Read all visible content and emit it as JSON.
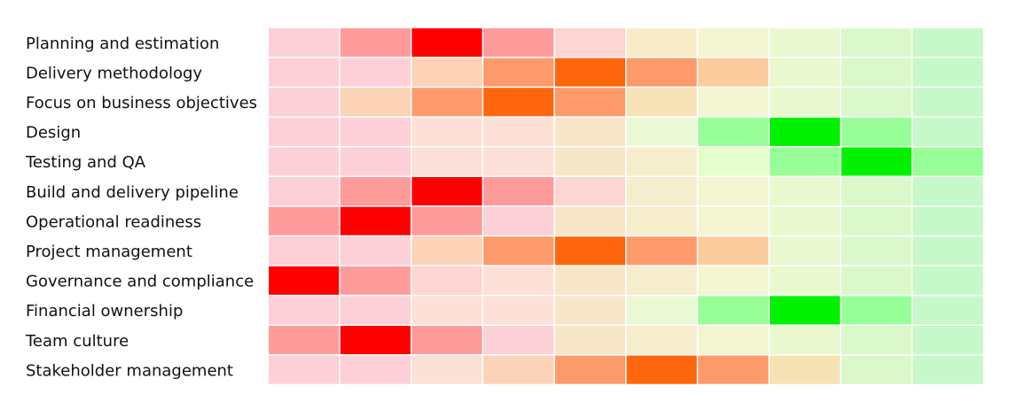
{
  "chart_data": {
    "type": "heatmap",
    "title": "",
    "xlabel": "",
    "ylabel": "",
    "rows": [
      "Planning and estimation",
      "Delivery methodology",
      "Focus  on business objectives",
      "Design",
      "Testing and QA",
      "Build  and delivery pipeline",
      "Operational readiness",
      "Project management",
      "Governance and compliance",
      "Financial ownership",
      "Team culture",
      "Stakeholder management"
    ],
    "columns": 10,
    "cell_colors": [
      [
        "#fdd0d8",
        "#fe9b9b",
        "#ff0000",
        "#fe9b9b",
        "#fdd5d2",
        "#f8ecc8",
        "#f4f5d2",
        "#eaf8d0",
        "#dbf8cb",
        "#c6f8c9"
      ],
      [
        "#fdd0d8",
        "#fdd0d8",
        "#fcd3b7",
        "#fd9a6c",
        "#fd660c",
        "#fd9a6c",
        "#fbcc9e",
        "#eaf8d0",
        "#dbf8cb",
        "#c6f8c9"
      ],
      [
        "#fdd0d8",
        "#fcd3b7",
        "#fd9a6c",
        "#fd660c",
        "#fd9a6c",
        "#f8e3b9",
        "#f4f5d2",
        "#eaf8d0",
        "#dbf8cb",
        "#c6f8c9"
      ],
      [
        "#fdd0d8",
        "#fdd0d8",
        "#fde0d7",
        "#fde0d7",
        "#f8e6c8",
        "#ebf8d6",
        "#98fe98",
        "#00f200",
        "#98fe98",
        "#c6f8c9"
      ],
      [
        "#fdd0d8",
        "#fdd0d8",
        "#fde0d7",
        "#fde0d7",
        "#f8e6c8",
        "#f6edcd",
        "#e4fecc",
        "#98fe98",
        "#00f200",
        "#98fe98"
      ],
      [
        "#fdd0d8",
        "#fe9b9b",
        "#ff0000",
        "#fe9b9b",
        "#fdd5d2",
        "#f6edcd",
        "#f4f5d2",
        "#eaf8d0",
        "#dbf8cb",
        "#c6f8c9"
      ],
      [
        "#fe9b9b",
        "#ff0000",
        "#fe9b9b",
        "#fdd0d8",
        "#f8e6c8",
        "#f6edcd",
        "#f4f5d2",
        "#eaf8d0",
        "#dbf8cb",
        "#c6f8c9"
      ],
      [
        "#fdd0d8",
        "#fdd0d8",
        "#fcd3b7",
        "#fd9a6c",
        "#fd660c",
        "#fd9a6c",
        "#fbcc9e",
        "#eaf8d0",
        "#dbf8cb",
        "#c6f8c9"
      ],
      [
        "#ff0000",
        "#fe9b9b",
        "#fdd5d2",
        "#fde0d7",
        "#f8e6c8",
        "#f6edcd",
        "#f4f5d2",
        "#eaf8d0",
        "#dbf8cb",
        "#c6f8c9"
      ],
      [
        "#fdd0d8",
        "#fdd0d8",
        "#fde0d7",
        "#fde0d7",
        "#f8e6c8",
        "#ebf8d6",
        "#98fe98",
        "#00f200",
        "#98fe98",
        "#c6f8c9"
      ],
      [
        "#fe9b9b",
        "#ff0000",
        "#fe9b9b",
        "#fdd0d8",
        "#f8e6c8",
        "#f6edcd",
        "#f4f5d2",
        "#eaf8d0",
        "#dbf8cb",
        "#c6f8c9"
      ],
      [
        "#fdd0d8",
        "#fdd0d8",
        "#fde0d7",
        "#fcd3b7",
        "#fd9a6c",
        "#fd660c",
        "#fd9a6c",
        "#f6e1b2",
        "#dbf8cb",
        "#c6f8c9"
      ]
    ],
    "grid": false,
    "legend": "none"
  }
}
